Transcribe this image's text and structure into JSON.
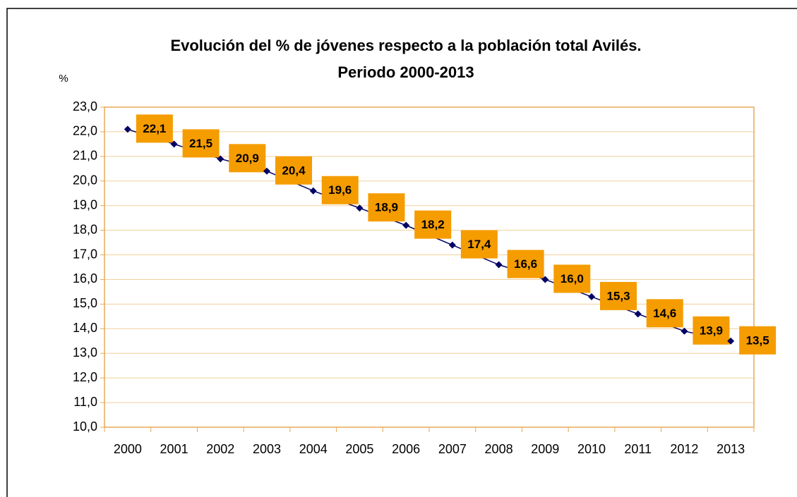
{
  "chart_data": {
    "type": "line",
    "title": "Evolución del % de jóvenes respecto a la población total Avilés.",
    "subtitle": "Periodo 2000-2013",
    "y_label": "%",
    "categories": [
      "2000",
      "2001",
      "2002",
      "2003",
      "2004",
      "2005",
      "2006",
      "2007",
      "2008",
      "2009",
      "2010",
      "2011",
      "2012",
      "2013"
    ],
    "series": [
      {
        "color": "#000066",
        "label_color": "#f59c00",
        "values": [
          22.1,
          21.5,
          20.9,
          20.4,
          19.6,
          18.9,
          18.2,
          17.4,
          16.6,
          16.0,
          15.3,
          14.6,
          13.9,
          13.5
        ],
        "value_labels": [
          "22,1",
          "21,5",
          "20,9",
          "20,4",
          "19,6",
          "18,9",
          "18,2",
          "17,4",
          "16,6",
          "16,0",
          "15,3",
          "14,6",
          "13,9",
          "13,5"
        ]
      }
    ],
    "ylim": [
      10,
      23
    ],
    "yticks": [
      {
        "value": 10,
        "label": "10,0"
      },
      {
        "value": 11,
        "label": "11,0"
      },
      {
        "value": 12,
        "label": "12,0"
      },
      {
        "value": 13,
        "label": "13,0"
      },
      {
        "value": 14,
        "label": "14,0"
      },
      {
        "value": 15,
        "label": "15,0"
      },
      {
        "value": 16,
        "label": "16,0"
      },
      {
        "value": 17,
        "label": "17,0"
      },
      {
        "value": 18,
        "label": "18,0"
      },
      {
        "value": 19,
        "label": "19,0"
      },
      {
        "value": 20,
        "label": "20,0"
      },
      {
        "value": 21,
        "label": "21,0"
      },
      {
        "value": 22,
        "label": "22,0"
      },
      {
        "value": 23,
        "label": "23,0"
      }
    ],
    "grid": true
  }
}
